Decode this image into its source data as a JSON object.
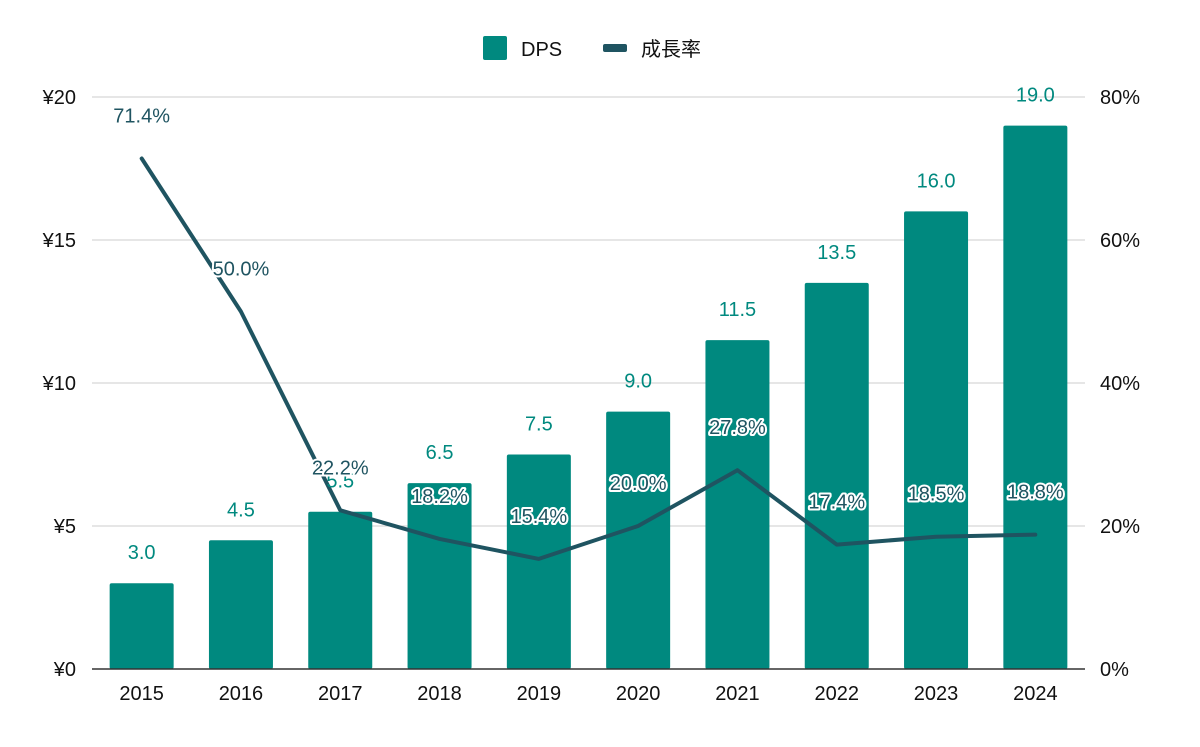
{
  "chart_data": {
    "type": "bar",
    "categories": [
      "2015",
      "2016",
      "2017",
      "2018",
      "2019",
      "2020",
      "2021",
      "2022",
      "2023",
      "2024"
    ],
    "series": [
      {
        "name": "DPS",
        "type": "bar",
        "axis": "left",
        "values": [
          3.0,
          4.5,
          5.5,
          6.5,
          7.5,
          9.0,
          11.5,
          13.5,
          16.0,
          19.0
        ],
        "labels": [
          "3.0",
          "4.5",
          "5.5",
          "6.5",
          "7.5",
          "9.0",
          "11.5",
          "13.5",
          "16.0",
          "19.0"
        ]
      },
      {
        "name": "成長率",
        "type": "line",
        "axis": "right",
        "values": [
          71.4,
          50.0,
          22.2,
          18.2,
          15.4,
          20.0,
          27.8,
          17.4,
          18.5,
          18.8
        ],
        "labels": [
          "71.4%",
          "50.0%",
          "22.2%",
          "18.2%",
          "15.4%",
          "20.0%",
          "27.8%",
          "17.4%",
          "18.5%",
          "18.8%"
        ]
      }
    ],
    "y_left": {
      "ylim": [
        0,
        20
      ],
      "ticks": [
        0,
        5,
        10,
        15,
        20
      ],
      "tick_labels": [
        "¥0",
        "¥5",
        "¥10",
        "¥15",
        "¥20"
      ]
    },
    "y_right": {
      "ylim": [
        0,
        80
      ],
      "ticks": [
        0,
        20,
        40,
        60,
        80
      ],
      "tick_labels": [
        "0%",
        "20%",
        "40%",
        "60%",
        "80%"
      ]
    },
    "grid": true,
    "legend_position": "top-center",
    "colors": {
      "bar": "#00897f",
      "line": "#1f5461",
      "grid": "#cccccc",
      "axis": "#333333"
    }
  }
}
